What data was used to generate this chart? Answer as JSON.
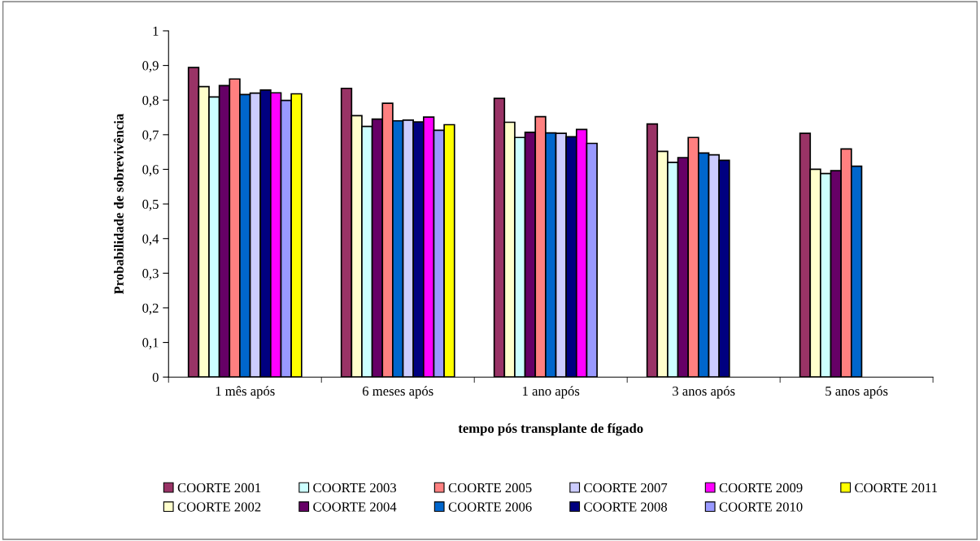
{
  "chart_data": {
    "type": "bar",
    "xlabel": "tempo pós transplante de fígado",
    "ylabel": "Probabilidade de sobrevivência",
    "categories": [
      "1 mês após",
      "6 meses após",
      "1 ano após",
      "3 anos após",
      "5 anos após"
    ],
    "series": [
      {
        "name": "COORTE 2001",
        "color": "#993366",
        "values": [
          0.894,
          0.834,
          0.805,
          0.731,
          0.704
        ]
      },
      {
        "name": "COORTE 2002",
        "color": "#ffffcc",
        "values": [
          0.839,
          0.755,
          0.736,
          0.652,
          0.6
        ]
      },
      {
        "name": "COORTE 2003",
        "color": "#ccffff",
        "values": [
          0.809,
          0.724,
          0.692,
          0.62,
          0.588
        ]
      },
      {
        "name": "COORTE 2004",
        "color": "#660066",
        "values": [
          0.842,
          0.745,
          0.707,
          0.634,
          0.596
        ]
      },
      {
        "name": "COORTE 2005",
        "color": "#ff8080",
        "values": [
          0.861,
          0.791,
          0.752,
          0.692,
          0.659
        ]
      },
      {
        "name": "COORTE 2006",
        "color": "#0066cc",
        "values": [
          0.816,
          0.74,
          0.705,
          0.647,
          0.609
        ]
      },
      {
        "name": "COORTE 2007",
        "color": "#ccccff",
        "values": [
          0.82,
          0.742,
          0.704,
          0.642,
          null
        ]
      },
      {
        "name": "COORTE 2008",
        "color": "#000080",
        "values": [
          0.829,
          0.737,
          0.694,
          0.626,
          null
        ]
      },
      {
        "name": "COORTE 2009",
        "color": "#ff00ff",
        "values": [
          0.821,
          0.751,
          0.715,
          null,
          null
        ]
      },
      {
        "name": "COORTE 2010",
        "color": "#9999ff",
        "values": [
          0.799,
          0.713,
          0.675,
          null,
          null
        ]
      },
      {
        "name": "COORTE 2011",
        "color": "#ffff00",
        "values": [
          0.818,
          0.729,
          null,
          null,
          null
        ]
      }
    ],
    "ylim": [
      0,
      1
    ],
    "yticks": [
      0,
      {
        "value": 0.1,
        "label": "0,1"
      },
      {
        "value": 0.2,
        "label": "0,2"
      },
      {
        "value": 0.3,
        "label": "0,3"
      },
      {
        "value": 0.4,
        "label": "0,4"
      },
      {
        "value": 0.5,
        "label": "0,5"
      },
      {
        "value": 0.6,
        "label": "0,6"
      },
      {
        "value": 0.7,
        "label": "0,7"
      },
      {
        "value": 0.8,
        "label": "0,8"
      },
      {
        "value": 0.9,
        "label": "0,9"
      },
      1
    ],
    "grid": false,
    "legend": "bottom"
  }
}
